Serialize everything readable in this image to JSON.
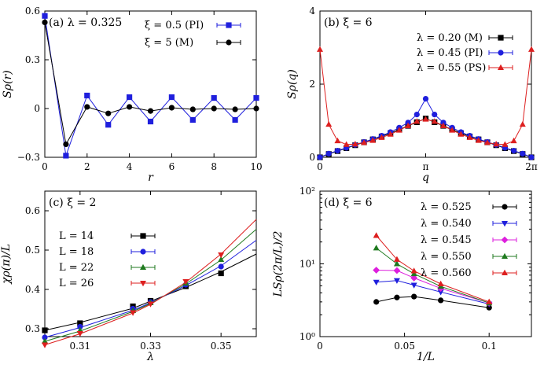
{
  "chart_data": [
    {
      "type": "line",
      "title": "(a) λ = 0.325",
      "xlabel": "r",
      "ylabel": "Sρ(r)",
      "xlim": [
        0,
        10
      ],
      "ylim": [
        -0.3,
        0.6
      ],
      "xscale": "linear",
      "yscale": "linear",
      "xticks": [
        0,
        2,
        4,
        6,
        8,
        10
      ],
      "xticklabels": [
        "0",
        "2",
        "4",
        "6",
        "8",
        "10"
      ],
      "yticks": [
        -0.3,
        0,
        0.3,
        0.6
      ],
      "yticklabels": [
        "−0.3",
        "0",
        "0.3",
        "0.6"
      ],
      "legend_position": "top-right",
      "series": [
        {
          "name": "ξ = 0.5 (PI)",
          "color": "#1f1fdd",
          "marker": "square",
          "x": [
            0,
            1,
            2,
            3,
            4,
            5,
            6,
            7,
            8,
            9,
            10
          ],
          "y": [
            0.57,
            -0.29,
            0.08,
            -0.1,
            0.07,
            -0.08,
            0.07,
            -0.07,
            0.065,
            -0.07,
            0.065
          ]
        },
        {
          "name": "ξ = 5    (M)",
          "color": "#000000",
          "marker": "circle",
          "x": [
            0,
            1,
            2,
            3,
            4,
            5,
            6,
            7,
            8,
            9,
            10
          ],
          "y": [
            0.53,
            -0.22,
            0.01,
            -0.03,
            0.01,
            -0.015,
            0.005,
            -0.005,
            0.0,
            -0.005,
            0.0
          ]
        }
      ]
    },
    {
      "type": "line",
      "title": "(b) ξ = 6",
      "xlabel": "q",
      "ylabel": "Sρ(q)",
      "xlim": [
        0,
        6.2832
      ],
      "ylim": [
        0,
        4
      ],
      "xscale": "linear",
      "yscale": "linear",
      "xticks": [
        0,
        3.1416,
        6.2832
      ],
      "xticklabels": [
        "0",
        "π",
        "2π"
      ],
      "yticks": [
        0,
        2,
        4
      ],
      "yticklabels": [
        "0",
        "2",
        "4"
      ],
      "legend_position": "top-right",
      "series": [
        {
          "name": "λ = 0.20 (M)",
          "color": "#000000",
          "marker": "square",
          "x": [
            0,
            0.2618,
            0.5236,
            0.7854,
            1.0472,
            1.309,
            1.5708,
            1.8326,
            2.0944,
            2.3562,
            2.618,
            2.8798,
            3.1416,
            3.4034,
            3.6652,
            3.927,
            4.1888,
            4.4506,
            4.7124,
            4.9742,
            5.236,
            5.4978,
            5.7596,
            6.0214,
            6.2832
          ],
          "y": [
            0,
            0.09,
            0.17,
            0.25,
            0.33,
            0.41,
            0.49,
            0.57,
            0.66,
            0.76,
            0.86,
            0.96,
            1.06,
            0.96,
            0.86,
            0.76,
            0.66,
            0.57,
            0.49,
            0.41,
            0.33,
            0.25,
            0.17,
            0.09,
            0
          ]
        },
        {
          "name": "λ = 0.45 (PI)",
          "color": "#1f1fdd",
          "marker": "circle",
          "x": [
            0,
            0.2618,
            0.5236,
            0.7854,
            1.0472,
            1.309,
            1.5708,
            1.8326,
            2.0944,
            2.3562,
            2.618,
            2.8798,
            3.1416,
            3.4034,
            3.6652,
            3.927,
            4.1888,
            4.4506,
            4.7124,
            4.9742,
            5.236,
            5.4978,
            5.7596,
            6.0214,
            6.2832
          ],
          "y": [
            0,
            0.1,
            0.18,
            0.26,
            0.34,
            0.42,
            0.5,
            0.59,
            0.69,
            0.81,
            0.95,
            1.17,
            1.6,
            1.17,
            0.95,
            0.81,
            0.69,
            0.59,
            0.5,
            0.42,
            0.34,
            0.26,
            0.18,
            0.1,
            0
          ]
        },
        {
          "name": "λ = 0.55 (PS)",
          "color": "#dd1f1f",
          "marker": "triangle",
          "x": [
            0,
            0.2618,
            0.5236,
            0.7854,
            1.0472,
            1.309,
            1.5708,
            1.8326,
            2.0944,
            2.3562,
            2.618,
            2.8798,
            3.1416,
            3.4034,
            3.6652,
            3.927,
            4.1888,
            4.4506,
            4.7124,
            4.9742,
            5.236,
            5.4978,
            5.7596,
            6.0214,
            6.2832
          ],
          "y": [
            2.95,
            0.9,
            0.45,
            0.35,
            0.36,
            0.4,
            0.46,
            0.54,
            0.63,
            0.74,
            0.86,
            0.98,
            1.04,
            0.98,
            0.86,
            0.74,
            0.63,
            0.54,
            0.46,
            0.4,
            0.36,
            0.35,
            0.45,
            0.9,
            2.95
          ]
        }
      ]
    },
    {
      "type": "line",
      "title": "(c) ξ = 2",
      "xlabel": "λ",
      "ylabel": "χρ(π)/L",
      "xlim": [
        0.3,
        0.36
      ],
      "ylim": [
        0.28,
        0.65
      ],
      "xscale": "linear",
      "yscale": "linear",
      "xticks": [
        0.31,
        0.33,
        0.35
      ],
      "xticklabels": [
        "0.31",
        "0.33",
        "0.35"
      ],
      "yticks": [
        0.3,
        0.4,
        0.5,
        0.6
      ],
      "yticklabels": [
        "0.3",
        "0.4",
        "0.5",
        "0.6"
      ],
      "legend_position": "top-left",
      "series": [
        {
          "name": "L = 14",
          "color": "#000000",
          "marker": "square",
          "x": [
            0.3,
            0.31,
            0.325,
            0.33,
            0.34,
            0.35
          ],
          "y": [
            0.296,
            0.314,
            0.357,
            0.371,
            0.408,
            0.441
          ],
          "fit_x": [
            0.3,
            0.31,
            0.325,
            0.33,
            0.34,
            0.35,
            0.36
          ],
          "fit_y": [
            0.296,
            0.316,
            0.352,
            0.37,
            0.405,
            0.445,
            0.49
          ]
        },
        {
          "name": "L = 18",
          "color": "#1f1fdd",
          "marker": "circle",
          "x": [
            0.3,
            0.31,
            0.325,
            0.33,
            0.34,
            0.35
          ],
          "y": [
            0.278,
            0.305,
            0.351,
            0.368,
            0.412,
            0.458
          ],
          "fit_x": [
            0.3,
            0.31,
            0.325,
            0.33,
            0.34,
            0.35,
            0.36
          ],
          "fit_y": [
            0.278,
            0.303,
            0.347,
            0.366,
            0.41,
            0.46,
            0.525
          ]
        },
        {
          "name": "L = 22",
          "color": "#1f7a1f",
          "marker": "triangle",
          "x": [
            0.3,
            0.31,
            0.325,
            0.33,
            0.34,
            0.35
          ],
          "y": [
            0.268,
            0.296,
            0.346,
            0.366,
            0.416,
            0.476
          ],
          "fit_x": [
            0.3,
            0.31,
            0.325,
            0.33,
            0.34,
            0.35,
            0.36
          ],
          "fit_y": [
            0.268,
            0.294,
            0.344,
            0.364,
            0.414,
            0.475,
            0.553
          ]
        },
        {
          "name": "L = 26",
          "color": "#dd1f1f",
          "marker": "triangle-down",
          "x": [
            0.3,
            0.31,
            0.325,
            0.33,
            0.34,
            0.35
          ],
          "y": [
            0.259,
            0.288,
            0.341,
            0.363,
            0.42,
            0.488
          ],
          "fit_x": [
            0.3,
            0.31,
            0.325,
            0.33,
            0.34,
            0.35,
            0.36
          ],
          "fit_y": [
            0.259,
            0.287,
            0.34,
            0.362,
            0.418,
            0.49,
            0.578
          ]
        }
      ]
    },
    {
      "type": "line",
      "title": "(d) ξ = 6",
      "xlabel": "1/L",
      "ylabel": "LSρ(2π/L)/2",
      "xlim": [
        0,
        0.125
      ],
      "ylim": [
        1,
        100
      ],
      "xscale": "linear",
      "yscale": "log",
      "xticks": [
        0,
        0.05,
        0.1
      ],
      "xticklabels": [
        "0",
        "0.05",
        "0.1"
      ],
      "yticks": [
        1,
        10,
        100
      ],
      "yticklabels": [
        "10⁰",
        "10¹",
        "10²"
      ],
      "legend_position": "top-right",
      "series": [
        {
          "name": "λ = 0.525",
          "color": "#000000",
          "marker": "circle",
          "x": [
            0.0333,
            0.0455,
            0.0556,
            0.0714,
            0.1
          ],
          "y": [
            3.0,
            3.45,
            3.55,
            3.15,
            2.5
          ]
        },
        {
          "name": "λ = 0.540",
          "color": "#1f1fdd",
          "marker": "triangle-down",
          "x": [
            0.0333,
            0.0455,
            0.0556,
            0.0714,
            0.1
          ],
          "y": [
            5.6,
            5.9,
            5.1,
            4.1,
            2.8
          ]
        },
        {
          "name": "λ = 0.545",
          "color": "#dd1fdd",
          "marker": "diamond",
          "x": [
            0.0333,
            0.0455,
            0.0556,
            0.0714,
            0.1
          ],
          "y": [
            8.2,
            8.1,
            6.4,
            4.6,
            2.9
          ]
        },
        {
          "name": "λ = 0.550",
          "color": "#1f7a1f",
          "marker": "triangle",
          "x": [
            0.0333,
            0.0455,
            0.0556,
            0.0714,
            0.1
          ],
          "y": [
            16.5,
            10.0,
            7.3,
            4.9,
            2.9
          ]
        },
        {
          "name": "λ = 0.560",
          "color": "#dd1f1f",
          "marker": "triangle",
          "x": [
            0.0333,
            0.0455,
            0.0556,
            0.0714,
            0.1
          ],
          "y": [
            24.5,
            11.5,
            8.0,
            5.3,
            3.0
          ]
        }
      ]
    }
  ]
}
